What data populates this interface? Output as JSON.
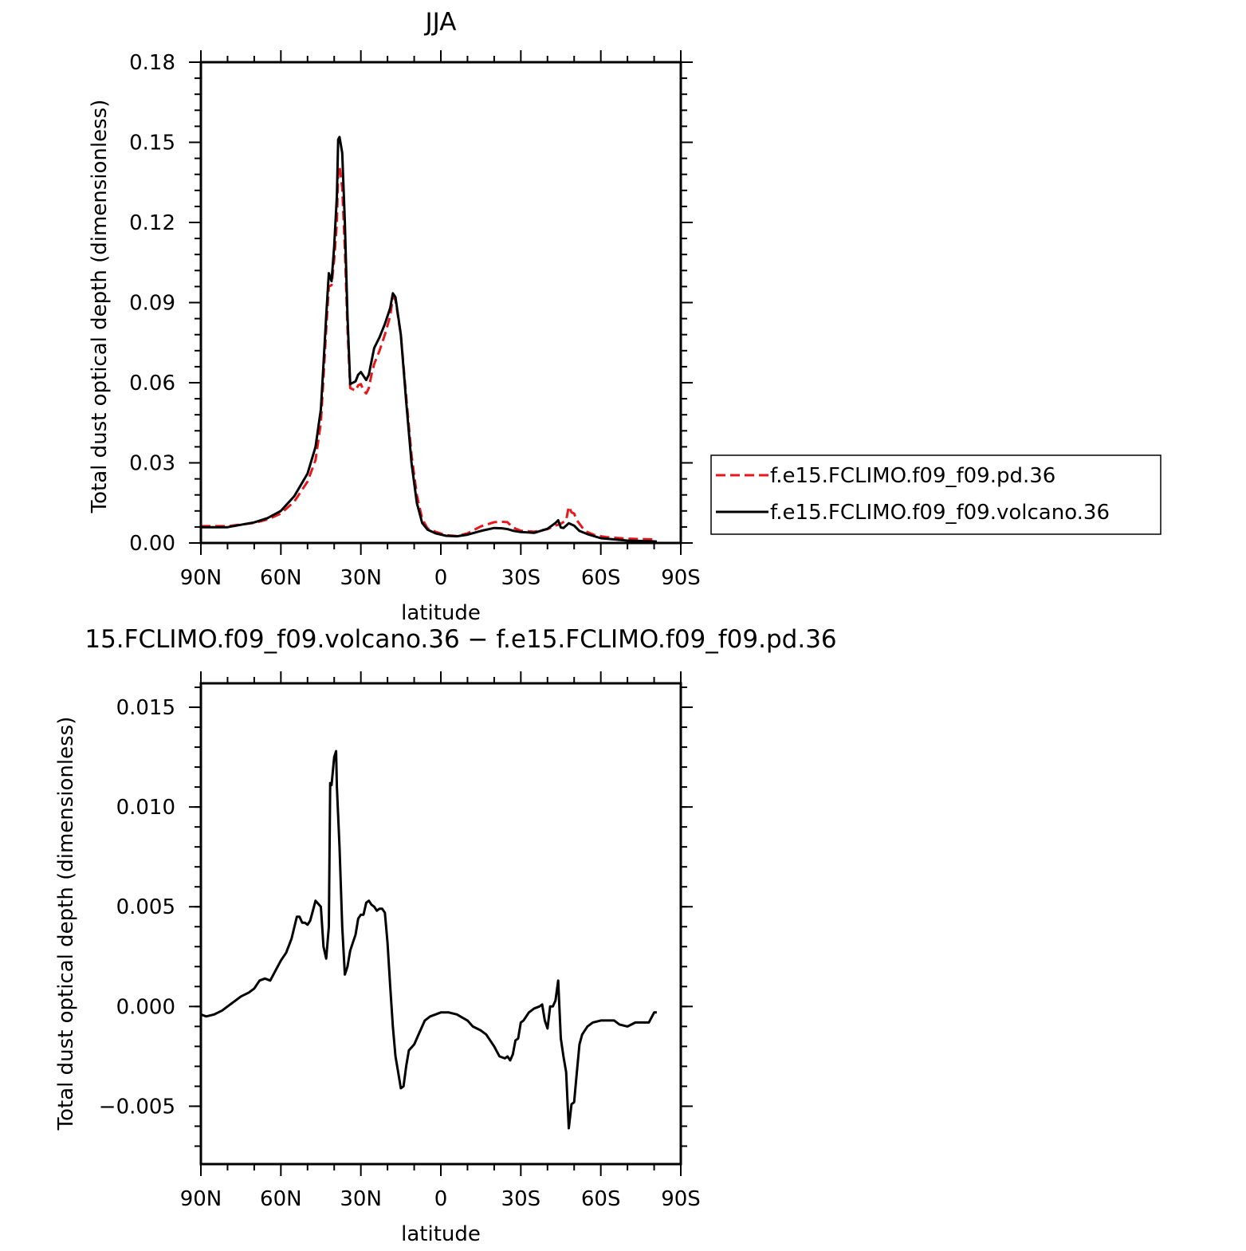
{
  "figure": {
    "top_title": "JJA",
    "bottom_title": "15.FCLIMO.f09_f09.volcano.36 − f.e15.FCLIMO.f09_f09.pd.36"
  },
  "colors": {
    "pd_series": "#e8171c",
    "volcano_series": "#000000",
    "axes": "#000000",
    "background": "#ffffff"
  },
  "chart_data": [
    {
      "type": "line",
      "title": "JJA",
      "xlabel": "latitude",
      "ylabel": "Total dust optical depth (dimensionless)",
      "xlim": [
        90,
        -90
      ],
      "ylim": [
        0,
        0.18
      ],
      "x_ticks": [
        {
          "value": 90,
          "label": "90N"
        },
        {
          "value": 60,
          "label": "60N"
        },
        {
          "value": 30,
          "label": "30N"
        },
        {
          "value": 0,
          "label": "0"
        },
        {
          "value": -30,
          "label": "30S"
        },
        {
          "value": -60,
          "label": "60S"
        },
        {
          "value": -90,
          "label": "90S"
        }
      ],
      "y_ticks": [
        {
          "value": 0.0,
          "label": "0.00"
        },
        {
          "value": 0.03,
          "label": "0.03"
        },
        {
          "value": 0.06,
          "label": "0.06"
        },
        {
          "value": 0.09,
          "label": "0.09"
        },
        {
          "value": 0.12,
          "label": "0.12"
        },
        {
          "value": 0.15,
          "label": "0.15"
        },
        {
          "value": 0.18,
          "label": "0.18"
        }
      ],
      "grid": false,
      "legend": "right",
      "series": [
        {
          "name": "f.e15.FCLIMO.f09_f09.pd.36",
          "style": "dashed",
          "points": [
            [
              90,
              0.0063
            ],
            [
              80,
              0.0063
            ],
            [
              70,
              0.0075
            ],
            [
              65,
              0.0088
            ],
            [
              60,
              0.011
            ],
            [
              55,
              0.0155
            ],
            [
              50,
              0.023
            ],
            [
              47,
              0.031
            ],
            [
              45,
              0.045
            ],
            [
              44,
              0.062
            ],
            [
              43,
              0.08
            ],
            [
              42,
              0.096
            ],
            [
              41,
              0.0965
            ],
            [
              40,
              0.106
            ],
            [
              39,
              0.12
            ],
            [
              38.5,
              0.139
            ],
            [
              38,
              0.141
            ],
            [
              37,
              0.133
            ],
            [
              36,
              0.11
            ],
            [
              35,
              0.08
            ],
            [
              34,
              0.058
            ],
            [
              32,
              0.057
            ],
            [
              31,
              0.059
            ],
            [
              30,
              0.0595
            ],
            [
              29,
              0.057
            ],
            [
              28,
              0.056
            ],
            [
              27,
              0.058
            ],
            [
              26,
              0.063
            ],
            [
              25,
              0.067
            ],
            [
              23,
              0.072
            ],
            [
              21,
              0.078
            ],
            [
              19,
              0.085
            ],
            [
              18,
              0.092
            ],
            [
              17,
              0.091
            ],
            [
              15,
              0.078
            ],
            [
              13,
              0.055
            ],
            [
              11,
              0.033
            ],
            [
              9,
              0.018
            ],
            [
              7,
              0.009
            ],
            [
              5,
              0.0055
            ],
            [
              2,
              0.0042
            ],
            [
              -2,
              0.0029
            ],
            [
              -6,
              0.0026
            ],
            [
              -10,
              0.0036
            ],
            [
              -15,
              0.0062
            ],
            [
              -20,
              0.0078
            ],
            [
              -23,
              0.0079
            ],
            [
              -25,
              0.0078
            ],
            [
              -27,
              0.0058
            ],
            [
              -30,
              0.0046
            ],
            [
              -35,
              0.0042
            ],
            [
              -40,
              0.0052
            ],
            [
              -43,
              0.0065
            ],
            [
              -45,
              0.0072
            ],
            [
              -47,
              0.0085
            ],
            [
              -48,
              0.0136
            ],
            [
              -49,
              0.0115
            ],
            [
              -50,
              0.011
            ],
            [
              -51,
              0.0085
            ],
            [
              -54,
              0.0045
            ],
            [
              -58,
              0.0028
            ],
            [
              -62,
              0.0022
            ],
            [
              -70,
              0.0016
            ],
            [
              -80,
              0.0013
            ],
            [
              -81,
              0.0012
            ]
          ]
        },
        {
          "name": "f.e15.FCLIMO.f09_f09.volcano.36",
          "style": "solid",
          "points": [
            [
              90,
              0.0059
            ],
            [
              80,
              0.0059
            ],
            [
              70,
              0.0077
            ],
            [
              65,
              0.0093
            ],
            [
              60,
              0.012
            ],
            [
              55,
              0.0175
            ],
            [
              50,
              0.026
            ],
            [
              47,
              0.036
            ],
            [
              45,
              0.05
            ],
            [
              44,
              0.067
            ],
            [
              43,
              0.085
            ],
            [
              42,
              0.101
            ],
            [
              41,
              0.098
            ],
            [
              40,
              0.111
            ],
            [
              39,
              0.13
            ],
            [
              38.5,
              0.151
            ],
            [
              38,
              0.152
            ],
            [
              37,
              0.146
            ],
            [
              36,
              0.12
            ],
            [
              35,
              0.085
            ],
            [
              34,
              0.0595
            ],
            [
              32,
              0.0605
            ],
            [
              31,
              0.063
            ],
            [
              30,
              0.064
            ],
            [
              29,
              0.0625
            ],
            [
              28,
              0.061
            ],
            [
              27,
              0.063
            ],
            [
              26,
              0.068
            ],
            [
              25,
              0.073
            ],
            [
              23,
              0.077
            ],
            [
              21,
              0.082
            ],
            [
              19,
              0.088
            ],
            [
              18,
              0.0935
            ],
            [
              17,
              0.092
            ],
            [
              15,
              0.078
            ],
            [
              13,
              0.053
            ],
            [
              11,
              0.03
            ],
            [
              9,
              0.015
            ],
            [
              7,
              0.0075
            ],
            [
              5,
              0.005
            ],
            [
              2,
              0.0036
            ],
            [
              -2,
              0.0027
            ],
            [
              -6,
              0.0025
            ],
            [
              -10,
              0.0031
            ],
            [
              -15,
              0.0045
            ],
            [
              -20,
              0.0056
            ],
            [
              -23,
              0.0055
            ],
            [
              -25,
              0.0052
            ],
            [
              -27,
              0.0046
            ],
            [
              -30,
              0.0041
            ],
            [
              -35,
              0.0038
            ],
            [
              -40,
              0.0053
            ],
            [
              -43,
              0.0075
            ],
            [
              -44,
              0.0085
            ],
            [
              -45,
              0.0058
            ],
            [
              -46,
              0.0056
            ],
            [
              -47,
              0.0065
            ],
            [
              -48,
              0.0074
            ],
            [
              -50,
              0.0065
            ],
            [
              -52,
              0.0045
            ],
            [
              -55,
              0.0033
            ],
            [
              -60,
              0.0018
            ],
            [
              -70,
              0.0009
            ],
            [
              -80,
              0.0006
            ],
            [
              -81,
              0.0005
            ]
          ]
        }
      ]
    },
    {
      "type": "line",
      "title": "15.FCLIMO.f09_f09.volcano.36 − f.e15.FCLIMO.f09_f09.pd.36",
      "xlabel": "latitude",
      "ylabel": "Total dust optical depth (dimensionless)",
      "xlim": [
        90,
        -90
      ],
      "ylim": [
        -0.0079,
        0.0162
      ],
      "x_ticks": [
        {
          "value": 90,
          "label": "90N"
        },
        {
          "value": 60,
          "label": "60N"
        },
        {
          "value": 30,
          "label": "30N"
        },
        {
          "value": 0,
          "label": "0"
        },
        {
          "value": -30,
          "label": "30S"
        },
        {
          "value": -60,
          "label": "60S"
        },
        {
          "value": -90,
          "label": "90S"
        }
      ],
      "y_ticks": [
        {
          "value": -0.005,
          "label": "−0.005"
        },
        {
          "value": 0.0,
          "label": "0.000"
        },
        {
          "value": 0.005,
          "label": "0.005"
        },
        {
          "value": 0.01,
          "label": "0.010"
        },
        {
          "value": 0.015,
          "label": "0.015"
        }
      ],
      "grid": false,
      "series": [
        {
          "style": "solid",
          "points": [
            [
              90,
              -0.0004
            ],
            [
              88,
              -0.0005
            ],
            [
              85,
              -0.0004
            ],
            [
              82,
              -0.0002
            ],
            [
              80,
              0.0
            ],
            [
              77,
              0.0003
            ],
            [
              75,
              0.0005
            ],
            [
              72,
              0.0007
            ],
            [
              70,
              0.0009
            ],
            [
              68,
              0.0013
            ],
            [
              66,
              0.0014
            ],
            [
              64,
              0.0013
            ],
            [
              62,
              0.0018
            ],
            [
              60,
              0.0023
            ],
            [
              58,
              0.0027
            ],
            [
              56,
              0.0034
            ],
            [
              54,
              0.0045
            ],
            [
              53,
              0.0045
            ],
            [
              52,
              0.0042
            ],
            [
              51,
              0.0042
            ],
            [
              50,
              0.0041
            ],
            [
              49,
              0.0043
            ],
            [
              48,
              0.0048
            ],
            [
              47,
              0.0053
            ],
            [
              45,
              0.005
            ],
            [
              44,
              0.003
            ],
            [
              43,
              0.0024
            ],
            [
              42,
              0.004
            ],
            [
              41.5,
              0.0112
            ],
            [
              41,
              0.0111
            ],
            [
              40,
              0.0125
            ],
            [
              39.3,
              0.0128
            ],
            [
              39,
              0.011
            ],
            [
              38,
              0.008
            ],
            [
              37,
              0.004
            ],
            [
              36,
              0.0016
            ],
            [
              35,
              0.002
            ],
            [
              34,
              0.0028
            ],
            [
              33,
              0.0032
            ],
            [
              32,
              0.0036
            ],
            [
              31,
              0.0044
            ],
            [
              30,
              0.0046
            ],
            [
              29,
              0.0046
            ],
            [
              28,
              0.0052
            ],
            [
              27,
              0.0053
            ],
            [
              26,
              0.0051
            ],
            [
              25,
              0.005
            ],
            [
              24,
              0.0048
            ],
            [
              23,
              0.0049
            ],
            [
              22,
              0.0049
            ],
            [
              21,
              0.0047
            ],
            [
              20,
              0.0032
            ],
            [
              19,
              0.001
            ],
            [
              18,
              -0.001
            ],
            [
              17,
              -0.0025
            ],
            [
              16,
              -0.0033
            ],
            [
              15,
              -0.0041
            ],
            [
              14,
              -0.004
            ],
            [
              13,
              -0.003
            ],
            [
              12,
              -0.0022
            ],
            [
              10,
              -0.0019
            ],
            [
              8,
              -0.0013
            ],
            [
              6,
              -0.0007
            ],
            [
              4,
              -0.0005
            ],
            [
              2,
              -0.0004
            ],
            [
              0,
              -0.0003
            ],
            [
              -3,
              -0.0003
            ],
            [
              -6,
              -0.0004
            ],
            [
              -10,
              -0.0007
            ],
            [
              -12,
              -0.001
            ],
            [
              -15,
              -0.0012
            ],
            [
              -17,
              -0.0014
            ],
            [
              -20,
              -0.002
            ],
            [
              -22,
              -0.0025
            ],
            [
              -24,
              -0.0026
            ],
            [
              -25,
              -0.0025
            ],
            [
              -26,
              -0.0027
            ],
            [
              -27,
              -0.0024
            ],
            [
              -28,
              -0.0017
            ],
            [
              -29,
              -0.0016
            ],
            [
              -30,
              -0.0008
            ],
            [
              -31,
              -0.0007
            ],
            [
              -33,
              -0.0003
            ],
            [
              -35,
              -0.0001
            ],
            [
              -37,
              0.0
            ],
            [
              -38,
              0.0001
            ],
            [
              -39,
              -0.0007
            ],
            [
              -40,
              -0.0011
            ],
            [
              -41,
              0.0
            ],
            [
              -42,
              0.0
            ],
            [
              -43,
              0.0003
            ],
            [
              -44,
              0.0013
            ],
            [
              -45,
              -0.0016
            ],
            [
              -46,
              -0.0025
            ],
            [
              -47,
              -0.0033
            ],
            [
              -48,
              -0.0061
            ],
            [
              -49,
              -0.0049
            ],
            [
              -50,
              -0.0048
            ],
            [
              -51,
              -0.0033
            ],
            [
              -52,
              -0.0019
            ],
            [
              -53,
              -0.0014
            ],
            [
              -55,
              -0.001
            ],
            [
              -57,
              -0.0008
            ],
            [
              -60,
              -0.0007
            ],
            [
              -63,
              -0.0007
            ],
            [
              -65,
              -0.0007
            ],
            [
              -67,
              -0.0009
            ],
            [
              -70,
              -0.001
            ],
            [
              -73,
              -0.0008
            ],
            [
              -75,
              -0.0008
            ],
            [
              -78,
              -0.0008
            ],
            [
              -80,
              -0.0003
            ],
            [
              -81,
              -0.0003
            ]
          ]
        }
      ]
    }
  ]
}
